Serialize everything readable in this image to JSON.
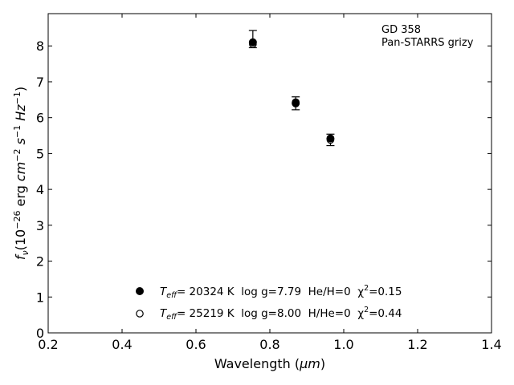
{
  "chart_data": {
    "type": "scatter",
    "xlabel_prefix": "Wavelength (",
    "xlabel_unit": "μm",
    "xlabel_suffix": ")",
    "ylabel": {
      "symbol": "f",
      "symbol_sub": "ν",
      "scale_base": "(10",
      "scale_exp": "−26",
      "unit_erg": " erg ",
      "unit_cm": "cm",
      "unit_cm_exp": "−2",
      "unit_s": " s",
      "unit_s_exp": "−1",
      "unit_hz": " Hz",
      "unit_hz_exp": "−1",
      "close": ")"
    },
    "xlim": [
      0.2,
      1.4
    ],
    "ylim": [
      0,
      8.9
    ],
    "xticks": [
      0.2,
      0.4,
      0.6,
      0.8,
      1.0,
      1.2,
      1.4
    ],
    "xtick_labels": [
      "0.2",
      "0.4",
      "0.6",
      "0.8",
      "1.0",
      "1.2",
      "1.4"
    ],
    "yticks": [
      0,
      1,
      2,
      3,
      4,
      5,
      6,
      7,
      8
    ],
    "ytick_labels": [
      "0",
      "1",
      "2",
      "3",
      "4",
      "5",
      "6",
      "7",
      "8"
    ],
    "annotation": [
      "GD 358",
      "Pan-STARRS grizy"
    ],
    "series": [
      {
        "marker": "filled",
        "x": [
          0.754,
          0.87,
          0.964
        ],
        "y": [
          8.1,
          6.4,
          5.42
        ],
        "err_low": [
          0.15,
          0.18,
          0.2
        ],
        "err_high": [
          0.33,
          0.18,
          0.12
        ]
      },
      {
        "marker": "open",
        "x": [
          0.754,
          0.87,
          0.964
        ],
        "y": [
          8.05,
          6.43,
          5.38
        ]
      }
    ],
    "legend": [
      {
        "marker": "filled",
        "teff_label": "T",
        "teff_sub": "eff",
        "text": "= 20324 K  log g=7.79  He/H=0  χ",
        "chi_exp": "2",
        "chi_val": "=0.15"
      },
      {
        "marker": "open",
        "teff_label": "T",
        "teff_sub": "eff",
        "text": "= 25219 K  log g=8.00  H/He=0  χ",
        "chi_exp": "2",
        "chi_val": "=0.44"
      }
    ],
    "grid": false,
    "legend_position": "bottom-center"
  }
}
